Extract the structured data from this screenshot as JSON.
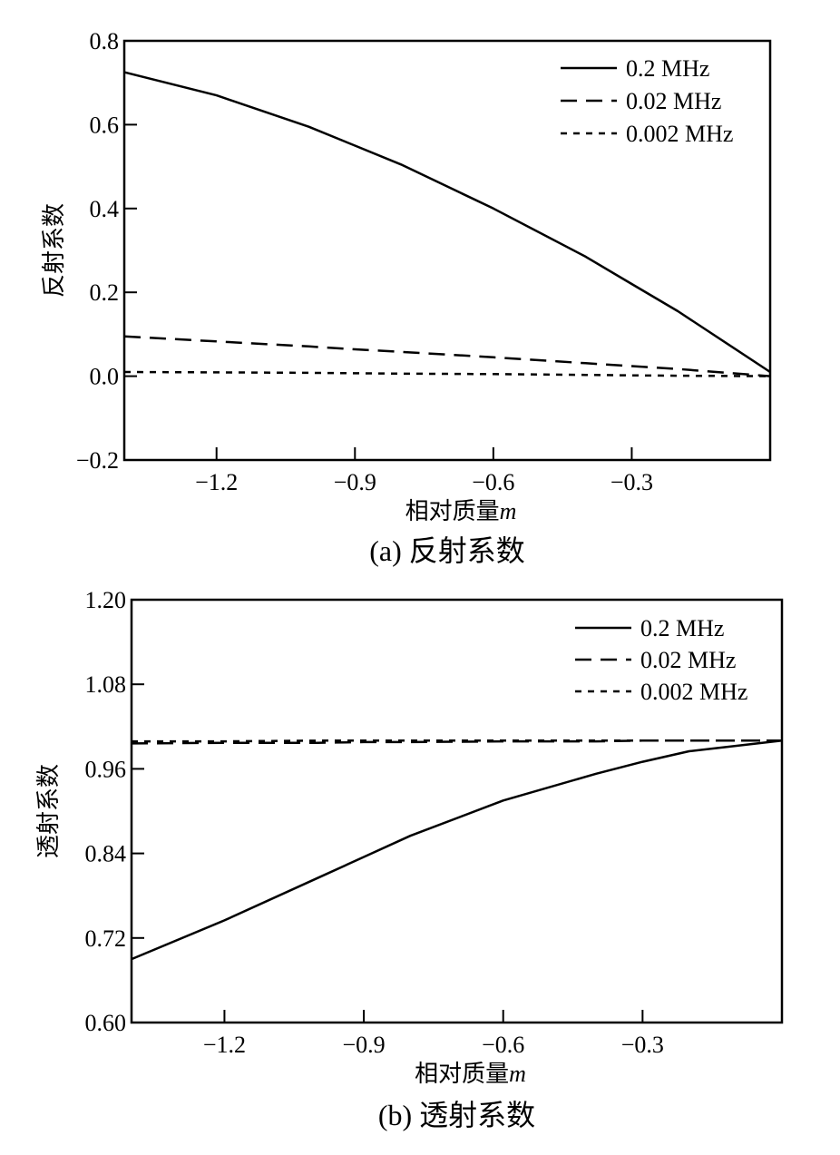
{
  "chart_data": [
    {
      "type": "line",
      "caption": "(a)  反射系数",
      "xlabel": "相对质量",
      "xlabel_var": "m",
      "ylabel": "反射系数",
      "xlim": [
        -1.4,
        0
      ],
      "ylim": [
        -0.2,
        0.8
      ],
      "xticks": [
        -1.2,
        -0.9,
        -0.6,
        -0.3
      ],
      "xtick_labels": [
        "−1.2",
        "−0.9",
        "−0.6",
        "−0.3"
      ],
      "yticks": [
        -0.2,
        0.0,
        0.2,
        0.4,
        0.6,
        0.8
      ],
      "ytick_labels": [
        "−0.2",
        "0.0",
        "0.2",
        "0.4",
        "0.6",
        "0.8"
      ],
      "legend_position": "top-right",
      "x": [
        -1.4,
        -1.2,
        -1.0,
        -0.9,
        -0.8,
        -0.6,
        -0.4,
        -0.3,
        -0.2,
        0.0
      ],
      "series": [
        {
          "name": "0.2 MHz",
          "style": "solid",
          "values": [
            0.725,
            0.67,
            0.595,
            0.55,
            0.505,
            0.4,
            0.285,
            0.22,
            0.155,
            0.01
          ]
        },
        {
          "name": "0.02 MHz",
          "style": "dashed",
          "values": [
            0.095,
            0.083,
            0.071,
            0.064,
            0.058,
            0.045,
            0.031,
            0.024,
            0.017,
            0.0
          ]
        },
        {
          "name": "0.002 MHz",
          "style": "dotted",
          "values": [
            0.01,
            0.009,
            0.008,
            0.007,
            0.006,
            0.005,
            0.003,
            0.002,
            0.001,
            0.0
          ]
        }
      ]
    },
    {
      "type": "line",
      "caption": "(b)  透射系数",
      "xlabel": "相对质量",
      "xlabel_var": "m",
      "ylabel": "透射系数",
      "xlim": [
        -1.4,
        0
      ],
      "ylim": [
        0.6,
        1.2
      ],
      "xticks": [
        -1.2,
        -0.9,
        -0.6,
        -0.3
      ],
      "xtick_labels": [
        "−1.2",
        "−0.9",
        "−0.6",
        "−0.3"
      ],
      "yticks": [
        0.6,
        0.72,
        0.84,
        0.96,
        1.08,
        1.2
      ],
      "ytick_labels": [
        "0.60",
        "0.72",
        "0.84",
        "0.96",
        "1.08",
        "1.20"
      ],
      "legend_position": "top-right",
      "x": [
        -1.4,
        -1.2,
        -1.0,
        -0.9,
        -0.8,
        -0.6,
        -0.4,
        -0.3,
        -0.2,
        0.0
      ],
      "series": [
        {
          "name": "0.2 MHz",
          "style": "solid",
          "values": [
            0.69,
            0.745,
            0.805,
            0.835,
            0.865,
            0.915,
            0.953,
            0.97,
            0.985,
            1.0
          ]
        },
        {
          "name": "0.02 MHz",
          "style": "dashed",
          "values": [
            0.996,
            0.997,
            0.997,
            0.998,
            0.998,
            0.999,
            0.999,
            1.0,
            1.0,
            1.0
          ]
        },
        {
          "name": "0.002 MHz",
          "style": "dotted",
          "values": [
            0.999,
            0.999,
            1.0,
            1.0,
            1.0,
            1.0,
            1.0,
            1.0,
            1.0,
            1.0
          ]
        }
      ]
    }
  ]
}
